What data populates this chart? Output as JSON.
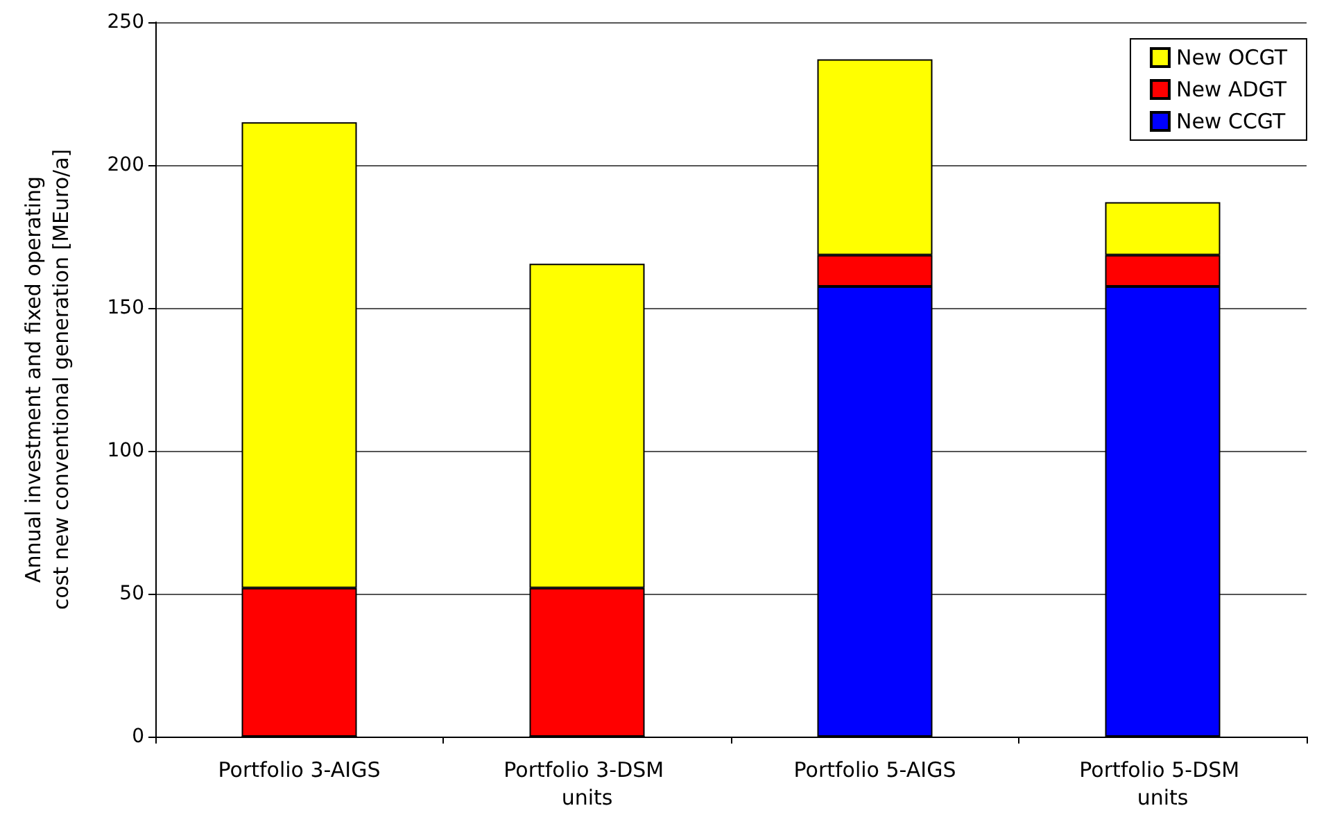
{
  "chart_data": {
    "type": "bar",
    "stacked": true,
    "ylabel": "Annual investment and fixed operating cost new conventional generation [MEuro/a]",
    "categories": [
      "Portfolio 3-AIGS",
      "Portfolio 3-DSM units",
      "Portfolio 5-AIGS",
      "Portfolio 5-DSM units"
    ],
    "series": [
      {
        "name": "New CCGT",
        "color": "#0000ff",
        "values": [
          0,
          0,
          157.5,
          157.5
        ]
      },
      {
        "name": "New ADGT",
        "color": "#ff0000",
        "values": [
          52,
          52,
          11,
          11
        ]
      },
      {
        "name": "New OCGT",
        "color": "#ffff00",
        "values": [
          163,
          113.5,
          68.5,
          18.5
        ]
      }
    ],
    "ylim": [
      0,
      250
    ],
    "yticks": [
      0,
      50,
      100,
      150,
      200,
      250
    ],
    "grid": "y",
    "legend": "top right"
  }
}
